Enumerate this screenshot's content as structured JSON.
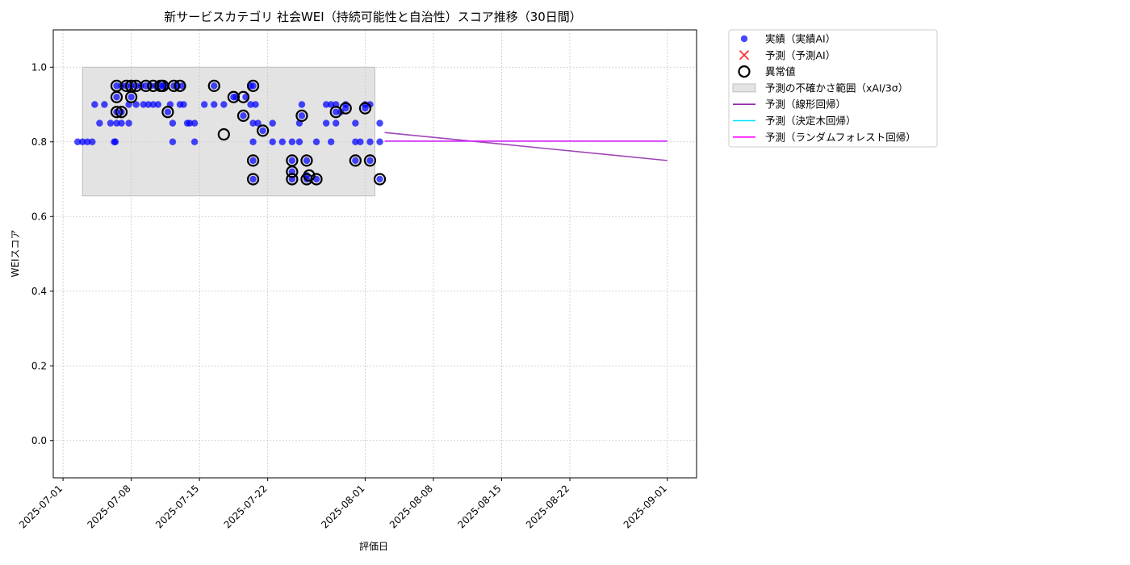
{
  "chart_data": {
    "type": "scatter",
    "title": "新サービスカテゴリ 社会WEI（持続可能性と自治性）スコア推移（30日間）",
    "xlabel": "評価日",
    "ylabel": "WEIスコア",
    "xlim": [
      "2025-06-30",
      "2025-09-04"
    ],
    "ylim": [
      -0.1,
      1.1
    ],
    "yticks": [
      0.0,
      0.2,
      0.4,
      0.6,
      0.8,
      1.0
    ],
    "ytick_labels": [
      "0.0",
      "0.2",
      "0.4",
      "0.6",
      "0.8",
      "1.0"
    ],
    "xticks": [
      "2025-07-01",
      "2025-07-08",
      "2025-07-15",
      "2025-07-22",
      "2025-08-01",
      "2025-08-08",
      "2025-08-15",
      "2025-08-22",
      "2025-09-01"
    ],
    "grid": true,
    "legend_position": "outside-upper-right",
    "legend": [
      {
        "label": "実績（実績AI）",
        "kind": "dot",
        "color": "#0000ff"
      },
      {
        "label": "予測（予測AI）",
        "kind": "x",
        "color": "#ff0000"
      },
      {
        "label": "異常値",
        "kind": "ring",
        "color": "#000000"
      },
      {
        "label": "予測の不確かさ範囲（xAI/3σ）",
        "kind": "box",
        "color": "#c8c8c8"
      },
      {
        "label": "予測（線形回帰）",
        "kind": "line",
        "color": "#8e24aa"
      },
      {
        "label": "予測（決定木回帰）",
        "kind": "line",
        "color": "#00e5ff"
      },
      {
        "label": "予測（ランダムフォレスト回帰）",
        "kind": "line",
        "color": "#ff00ff"
      }
    ],
    "uncertainty_band": {
      "x": [
        "2025-07-03",
        "2025-08-02"
      ],
      "y": [
        0.655,
        1.0
      ]
    },
    "series": [
      {
        "name": "実績（実績AI）",
        "color": "#0000ff",
        "points": [
          {
            "x": "2025-07-02T12:00",
            "y": 0.8
          },
          {
            "x": "2025-07-03T00:00",
            "y": 0.8
          },
          {
            "x": "2025-07-03T12:00",
            "y": 0.8
          },
          {
            "x": "2025-07-04T00:00",
            "y": 0.8
          },
          {
            "x": "2025-07-04T06:00",
            "y": 0.9
          },
          {
            "x": "2025-07-04T18:00",
            "y": 0.85
          },
          {
            "x": "2025-07-05T06:00",
            "y": 0.9
          },
          {
            "x": "2025-07-05T21:00",
            "y": 0.85
          },
          {
            "x": "2025-07-06T06:00",
            "y": 0.8
          },
          {
            "x": "2025-07-06T09:00",
            "y": 0.8
          },
          {
            "x": "2025-07-06T12:00",
            "y": 0.85
          },
          {
            "x": "2025-07-06T12:00",
            "y": 0.92
          },
          {
            "x": "2025-07-06T12:00",
            "y": 0.95
          },
          {
            "x": "2025-07-06T12:00",
            "y": 0.88
          },
          {
            "x": "2025-07-07T00:00",
            "y": 0.85
          },
          {
            "x": "2025-07-07T00:00",
            "y": 0.88
          },
          {
            "x": "2025-07-07T00:00",
            "y": 0.95
          },
          {
            "x": "2025-07-07T12:00",
            "y": 0.95
          },
          {
            "x": "2025-07-07T18:00",
            "y": 0.85
          },
          {
            "x": "2025-07-07T18:00",
            "y": 0.9
          },
          {
            "x": "2025-07-08T00:00",
            "y": 0.92
          },
          {
            "x": "2025-07-08T00:00",
            "y": 0.95
          },
          {
            "x": "2025-07-08T12:00",
            "y": 0.9
          },
          {
            "x": "2025-07-08T12:00",
            "y": 0.95
          },
          {
            "x": "2025-07-09T00:00",
            "y": 0.95
          },
          {
            "x": "2025-07-09T06:00",
            "y": 0.9
          },
          {
            "x": "2025-07-09T12:00",
            "y": 0.95
          },
          {
            "x": "2025-07-09T18:00",
            "y": 0.9
          },
          {
            "x": "2025-07-10T00:00",
            "y": 0.95
          },
          {
            "x": "2025-07-10T06:00",
            "y": 0.9
          },
          {
            "x": "2025-07-10T12:00",
            "y": 0.95
          },
          {
            "x": "2025-07-10T18:00",
            "y": 0.9
          },
          {
            "x": "2025-07-11T00:00",
            "y": 0.95
          },
          {
            "x": "2025-07-11T06:00",
            "y": 0.95
          },
          {
            "x": "2025-07-11T12:00",
            "y": 0.95
          },
          {
            "x": "2025-07-11T18:00",
            "y": 0.88
          },
          {
            "x": "2025-07-12T00:00",
            "y": 0.9
          },
          {
            "x": "2025-07-12T06:00",
            "y": 0.85
          },
          {
            "x": "2025-07-12T06:00",
            "y": 0.8
          },
          {
            "x": "2025-07-12T09:00",
            "y": 0.95
          },
          {
            "x": "2025-07-12T18:00",
            "y": 0.95
          },
          {
            "x": "2025-07-13T00:00",
            "y": 0.9
          },
          {
            "x": "2025-07-13T06:00",
            "y": 0.95
          },
          {
            "x": "2025-07-13T09:00",
            "y": 0.9
          },
          {
            "x": "2025-07-13T18:00",
            "y": 0.85
          },
          {
            "x": "2025-07-14T00:00",
            "y": 0.85
          },
          {
            "x": "2025-07-14T12:00",
            "y": 0.8
          },
          {
            "x": "2025-07-14T12:00",
            "y": 0.85
          },
          {
            "x": "2025-07-15T12:00",
            "y": 0.9
          },
          {
            "x": "2025-07-16T12:00",
            "y": 0.95
          },
          {
            "x": "2025-07-16T12:00",
            "y": 0.9
          },
          {
            "x": "2025-07-17T12:00",
            "y": 0.9
          },
          {
            "x": "2025-07-18T12:00",
            "y": 0.92
          },
          {
            "x": "2025-07-18T18:00",
            "y": 0.92
          },
          {
            "x": "2025-07-19T12:00",
            "y": 0.87
          },
          {
            "x": "2025-07-19T18:00",
            "y": 0.92
          },
          {
            "x": "2025-07-20T06:00",
            "y": 0.95
          },
          {
            "x": "2025-07-20T06:00",
            "y": 0.9
          },
          {
            "x": "2025-07-20T12:00",
            "y": 0.95
          },
          {
            "x": "2025-07-20T12:00",
            "y": 0.85
          },
          {
            "x": "2025-07-20T12:00",
            "y": 0.8
          },
          {
            "x": "2025-07-20T12:00",
            "y": 0.75
          },
          {
            "x": "2025-07-20T12:00",
            "y": 0.7
          },
          {
            "x": "2025-07-20T18:00",
            "y": 0.9
          },
          {
            "x": "2025-07-21T00:00",
            "y": 0.85
          },
          {
            "x": "2025-07-21T12:00",
            "y": 0.83
          },
          {
            "x": "2025-07-22T12:00",
            "y": 0.85
          },
          {
            "x": "2025-07-22T12:00",
            "y": 0.8
          },
          {
            "x": "2025-07-23T12:00",
            "y": 0.8
          },
          {
            "x": "2025-07-24T12:00",
            "y": 0.8
          },
          {
            "x": "2025-07-24T12:00",
            "y": 0.75
          },
          {
            "x": "2025-07-24T12:00",
            "y": 0.72
          },
          {
            "x": "2025-07-24T12:00",
            "y": 0.7
          },
          {
            "x": "2025-07-25T06:00",
            "y": 0.8
          },
          {
            "x": "2025-07-25T06:00",
            "y": 0.85
          },
          {
            "x": "2025-07-25T12:00",
            "y": 0.87
          },
          {
            "x": "2025-07-25T12:00",
            "y": 0.9
          },
          {
            "x": "2025-07-26T00:00",
            "y": 0.75
          },
          {
            "x": "2025-07-26T00:00",
            "y": 0.71
          },
          {
            "x": "2025-07-26T00:00",
            "y": 0.7
          },
          {
            "x": "2025-07-27T00:00",
            "y": 0.8
          },
          {
            "x": "2025-07-27T00:00",
            "y": 0.7
          },
          {
            "x": "2025-07-28T00:00",
            "y": 0.85
          },
          {
            "x": "2025-07-28T00:00",
            "y": 0.9
          },
          {
            "x": "2025-07-28T12:00",
            "y": 0.8
          },
          {
            "x": "2025-07-28T12:00",
            "y": 0.9
          },
          {
            "x": "2025-07-29T00:00",
            "y": 0.85
          },
          {
            "x": "2025-07-29T00:00",
            "y": 0.88
          },
          {
            "x": "2025-07-29T00:00",
            "y": 0.9
          },
          {
            "x": "2025-07-29T12:00",
            "y": 0.88
          },
          {
            "x": "2025-07-30T00:00",
            "y": 0.89
          },
          {
            "x": "2025-07-30T00:00",
            "y": 0.9
          },
          {
            "x": "2025-07-31T00:00",
            "y": 0.85
          },
          {
            "x": "2025-07-31T00:00",
            "y": 0.8
          },
          {
            "x": "2025-07-31T00:00",
            "y": 0.75
          },
          {
            "x": "2025-07-31T12:00",
            "y": 0.8
          },
          {
            "x": "2025-08-01T00:00",
            "y": 0.89
          },
          {
            "x": "2025-08-01T00:00",
            "y": 0.9
          },
          {
            "x": "2025-08-01T12:00",
            "y": 0.9
          },
          {
            "x": "2025-08-01T12:00",
            "y": 0.8
          },
          {
            "x": "2025-08-01T12:00",
            "y": 0.75
          },
          {
            "x": "2025-08-02T12:00",
            "y": 0.85
          },
          {
            "x": "2025-08-02T12:00",
            "y": 0.8
          },
          {
            "x": "2025-08-02T12:00",
            "y": 0.7
          }
        ]
      },
      {
        "name": "異常値",
        "color": "#000000",
        "points": [
          {
            "x": "2025-07-06T12:00",
            "y": 0.95
          },
          {
            "x": "2025-07-06T12:00",
            "y": 0.92
          },
          {
            "x": "2025-07-06T12:00",
            "y": 0.88
          },
          {
            "x": "2025-07-07T00:00",
            "y": 0.88
          },
          {
            "x": "2025-07-07T12:00",
            "y": 0.95
          },
          {
            "x": "2025-07-08T00:00",
            "y": 0.95
          },
          {
            "x": "2025-07-08T00:00",
            "y": 0.92
          },
          {
            "x": "2025-07-08T12:00",
            "y": 0.95
          },
          {
            "x": "2025-07-09T12:00",
            "y": 0.95
          },
          {
            "x": "2025-07-10T06:00",
            "y": 0.95
          },
          {
            "x": "2025-07-11T00:00",
            "y": 0.95
          },
          {
            "x": "2025-07-11T06:00",
            "y": 0.95
          },
          {
            "x": "2025-07-11T18:00",
            "y": 0.88
          },
          {
            "x": "2025-07-12T09:00",
            "y": 0.95
          },
          {
            "x": "2025-07-13T00:00",
            "y": 0.95
          },
          {
            "x": "2025-07-16T12:00",
            "y": 0.95
          },
          {
            "x": "2025-07-17T12:00",
            "y": 0.82
          },
          {
            "x": "2025-07-18T12:00",
            "y": 0.92
          },
          {
            "x": "2025-07-19T12:00",
            "y": 0.92
          },
          {
            "x": "2025-07-19T12:00",
            "y": 0.87
          },
          {
            "x": "2025-07-20T12:00",
            "y": 0.95
          },
          {
            "x": "2025-07-20T12:00",
            "y": 0.75
          },
          {
            "x": "2025-07-20T12:00",
            "y": 0.7
          },
          {
            "x": "2025-07-21T12:00",
            "y": 0.83
          },
          {
            "x": "2025-07-24T12:00",
            "y": 0.75
          },
          {
            "x": "2025-07-24T12:00",
            "y": 0.72
          },
          {
            "x": "2025-07-24T12:00",
            "y": 0.7
          },
          {
            "x": "2025-07-25T12:00",
            "y": 0.87
          },
          {
            "x": "2025-07-26T00:00",
            "y": 0.75
          },
          {
            "x": "2025-07-26T00:00",
            "y": 0.7
          },
          {
            "x": "2025-07-26T06:00",
            "y": 0.71
          },
          {
            "x": "2025-07-27T00:00",
            "y": 0.7
          },
          {
            "x": "2025-07-29T00:00",
            "y": 0.88
          },
          {
            "x": "2025-07-30T00:00",
            "y": 0.89
          },
          {
            "x": "2025-07-31T00:00",
            "y": 0.75
          },
          {
            "x": "2025-08-01T00:00",
            "y": 0.89
          },
          {
            "x": "2025-08-01T12:00",
            "y": 0.75
          },
          {
            "x": "2025-08-02T12:00",
            "y": 0.7
          }
        ]
      },
      {
        "name": "予測（線形回帰）",
        "color": "#8e24aa",
        "line": [
          {
            "x": "2025-08-03",
            "y": 0.825
          },
          {
            "x": "2025-09-01",
            "y": 0.75
          }
        ]
      },
      {
        "name": "予測（決定木回帰）",
        "color": "#00e5ff",
        "line": [
          {
            "x": "2025-08-03",
            "y": 0.802
          },
          {
            "x": "2025-09-01",
            "y": 0.802
          }
        ]
      },
      {
        "name": "予測（ランダムフォレスト回帰）",
        "color": "#ff00ff",
        "line": [
          {
            "x": "2025-08-03",
            "y": 0.802
          },
          {
            "x": "2025-09-01",
            "y": 0.802
          }
        ]
      }
    ]
  }
}
